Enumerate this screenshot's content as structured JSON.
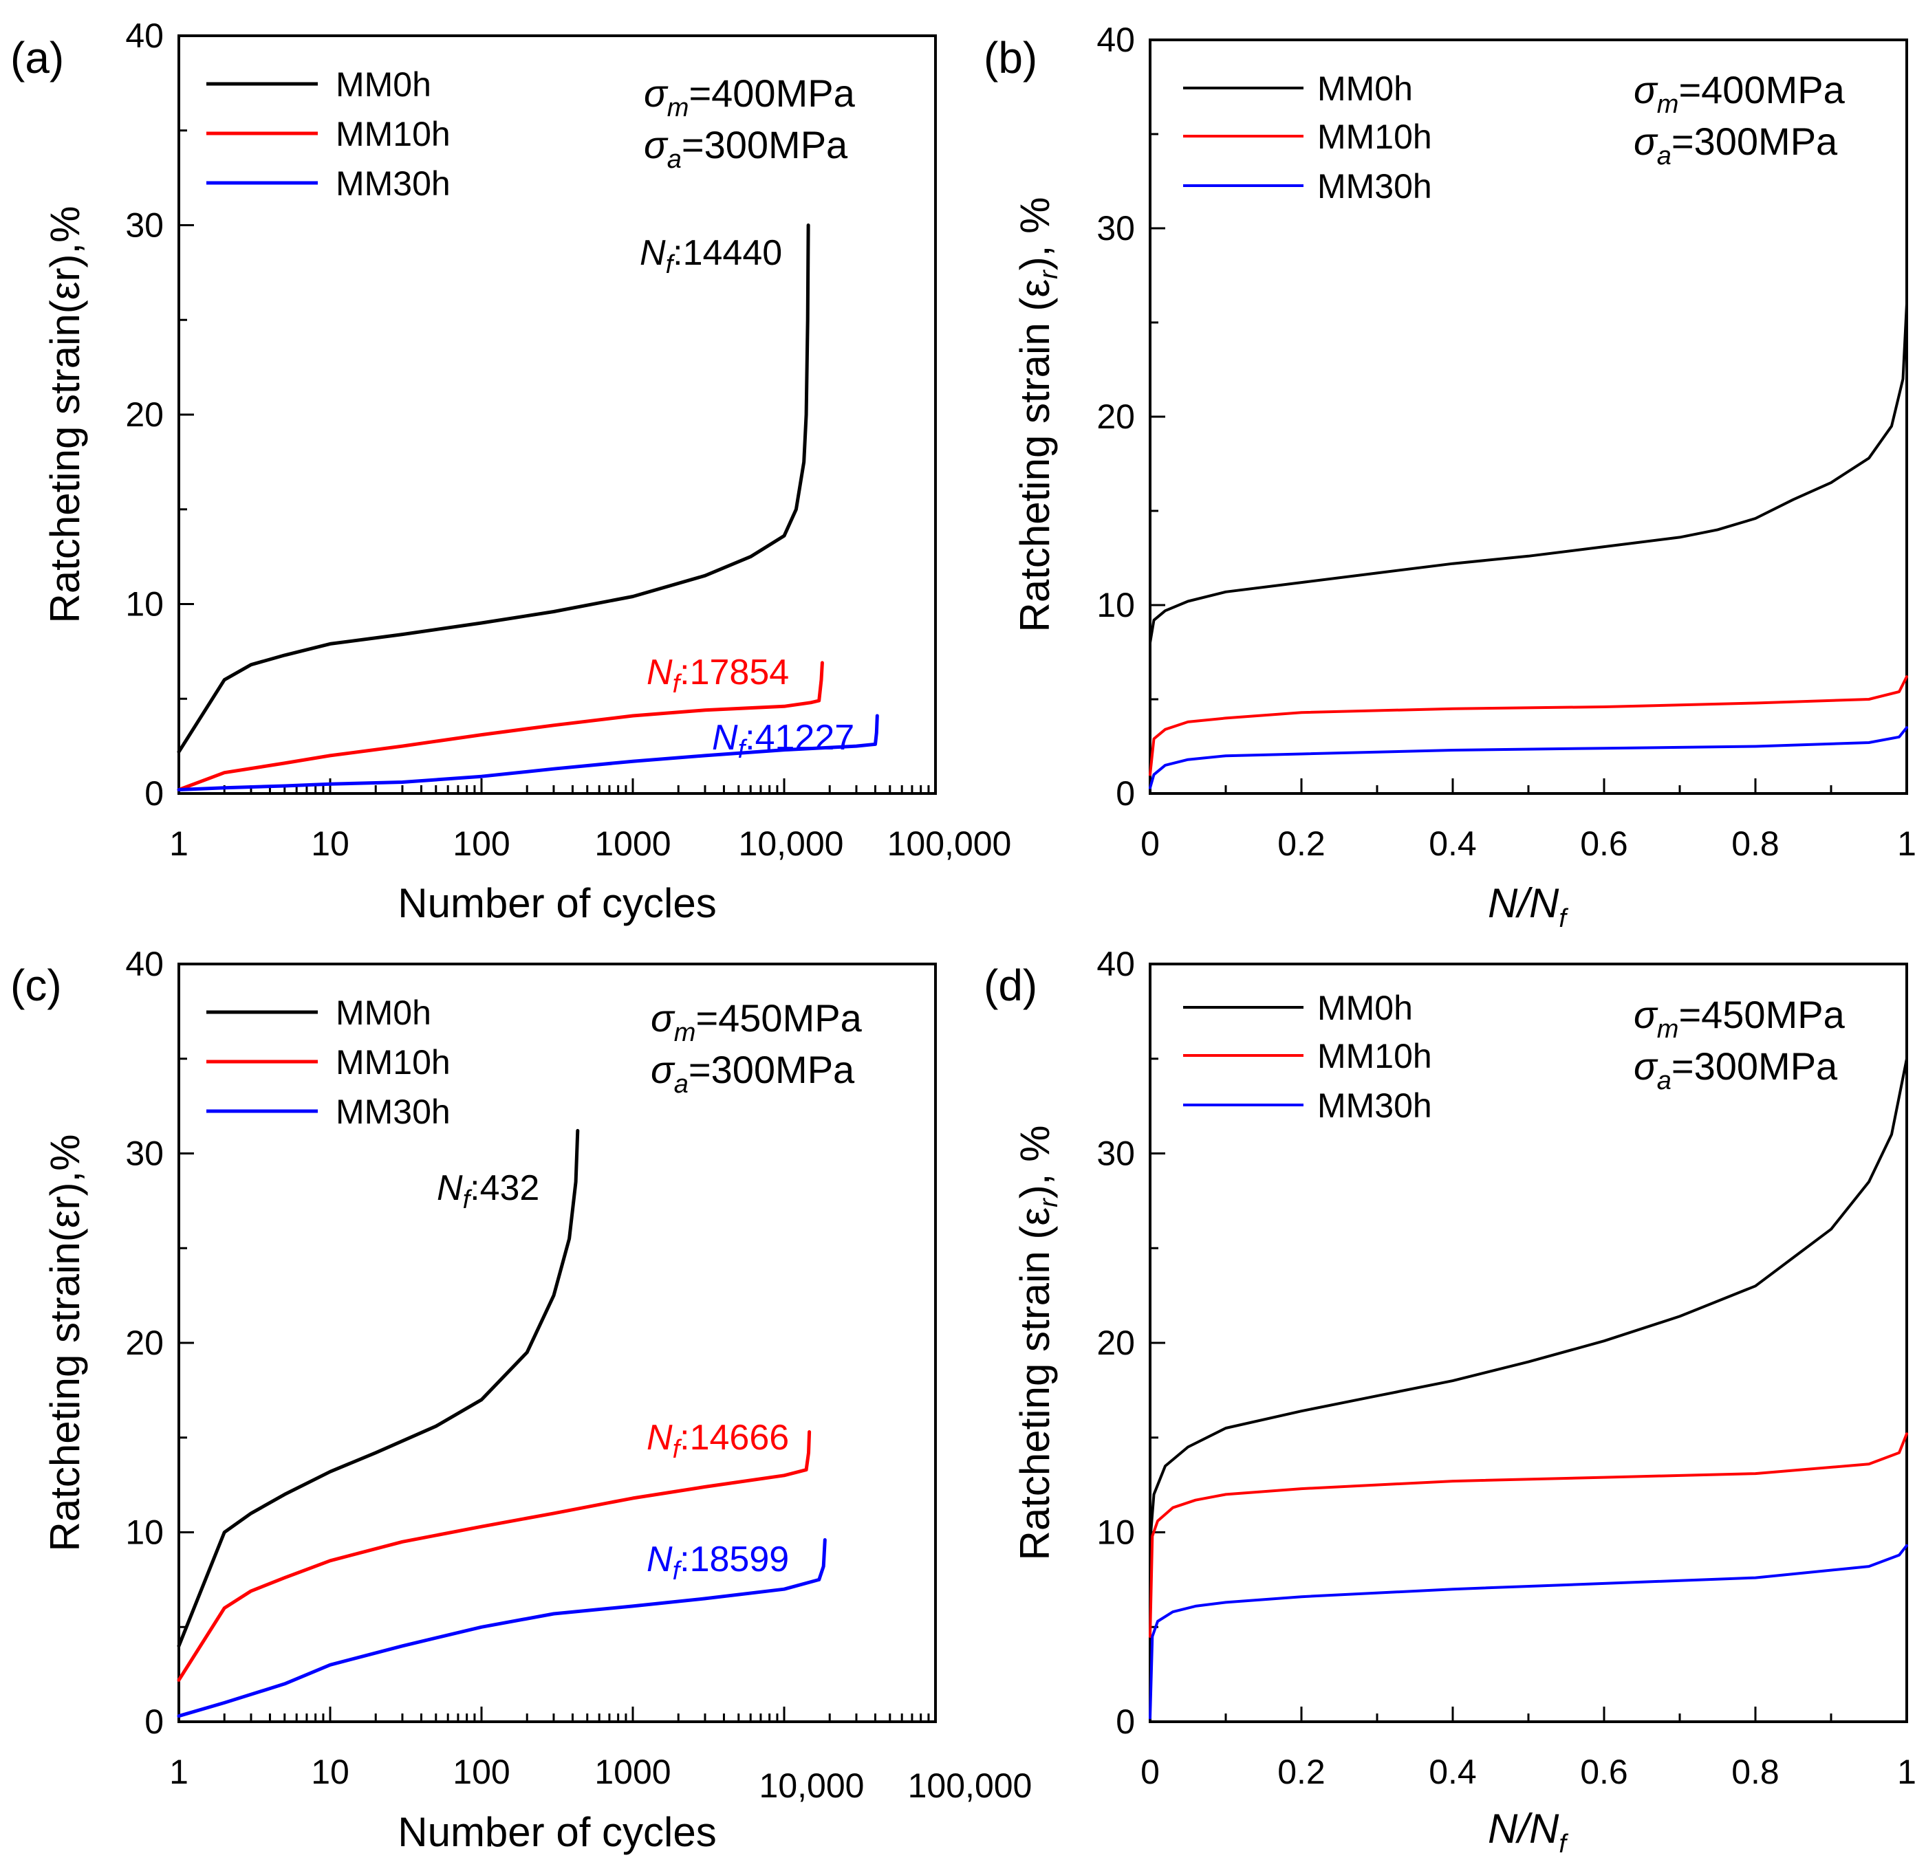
{
  "chart_data": [
    {
      "panel": "(a)",
      "type": "line",
      "xscale": "log",
      "xlabel": "Number of cycles",
      "ylabel": "Ratcheting strain(εr),%",
      "xlim": [
        1,
        100000
      ],
      "ylim": [
        0,
        40
      ],
      "xticks": [
        1,
        10,
        100,
        1000,
        10000,
        100000
      ],
      "xtick_labels": [
        "1",
        "10",
        "100",
        "1000",
        "10,000",
        "100,000"
      ],
      "yticks": [
        0,
        10,
        20,
        30,
        40
      ],
      "ytick_labels": [
        "0",
        "10",
        "20",
        "30",
        "40"
      ],
      "legend_position": "top-left",
      "conditions": [
        {
          "symbol": "σ",
          "sub": "m",
          "value": "=400MPa"
        },
        {
          "symbol": "σ",
          "sub": "a",
          "value": "=300MPa"
        }
      ],
      "series": [
        {
          "name": "MM0h",
          "color": "#000000",
          "nf_label": "14440",
          "x": [
            1,
            2,
            3,
            5,
            10,
            30,
            100,
            300,
            1000,
            3000,
            6000,
            10000,
            12000,
            13500,
            14000,
            14300,
            14440
          ],
          "y": [
            2.2,
            6.0,
            6.8,
            7.3,
            7.9,
            8.4,
            9.0,
            9.6,
            10.4,
            11.5,
            12.5,
            13.6,
            15.0,
            17.5,
            20.0,
            25.0,
            30.0
          ]
        },
        {
          "name": "MM10h",
          "color": "#ff0000",
          "nf_label": "17854",
          "x": [
            1,
            2,
            5,
            10,
            30,
            100,
            300,
            1000,
            3000,
            10000,
            15000,
            17000,
            17600,
            17854
          ],
          "y": [
            0.2,
            1.1,
            1.6,
            2.0,
            2.5,
            3.1,
            3.6,
            4.1,
            4.4,
            4.6,
            4.8,
            4.9,
            6.0,
            6.9
          ]
        },
        {
          "name": "MM30h",
          "color": "#0000ff",
          "nf_label": "41227",
          "x": [
            1,
            2,
            5,
            10,
            30,
            100,
            300,
            1000,
            3000,
            10000,
            30000,
            40000,
            40800,
            41227
          ],
          "y": [
            0.2,
            0.3,
            0.4,
            0.5,
            0.6,
            0.9,
            1.3,
            1.7,
            2.0,
            2.3,
            2.5,
            2.6,
            3.2,
            4.1
          ]
        }
      ]
    },
    {
      "panel": "(b)",
      "type": "line",
      "xscale": "linear",
      "xlabel": "N/Nf",
      "ylabel": "Ratcheting strain (εr), %",
      "xlim": [
        0,
        1
      ],
      "ylim": [
        0,
        40
      ],
      "xticks": [
        0,
        0.2,
        0.4,
        0.6,
        0.8,
        1
      ],
      "xtick_labels": [
        "0",
        "0.2",
        "0.4",
        "0.6",
        "0.8",
        "1"
      ],
      "yticks": [
        0,
        10,
        20,
        30,
        40
      ],
      "ytick_labels": [
        "0",
        "10",
        "20",
        "30",
        "40"
      ],
      "legend_position": "top-left",
      "conditions": [
        {
          "symbol": "σ",
          "sub": "m",
          "value": "=400MPa"
        },
        {
          "symbol": "σ",
          "sub": "a",
          "value": "=300MPa"
        }
      ],
      "series": [
        {
          "name": "MM0h",
          "color": "#000000",
          "x": [
            0,
            0.005,
            0.02,
            0.05,
            0.1,
            0.2,
            0.3,
            0.4,
            0.5,
            0.6,
            0.7,
            0.75,
            0.8,
            0.85,
            0.9,
            0.95,
            0.98,
            0.995,
            1.0
          ],
          "y": [
            8.0,
            9.2,
            9.7,
            10.2,
            10.7,
            11.2,
            11.7,
            12.2,
            12.6,
            13.1,
            13.6,
            14.0,
            14.6,
            15.6,
            16.5,
            17.8,
            19.5,
            22.0,
            26.0
          ]
        },
        {
          "name": "MM10h",
          "color": "#ff0000",
          "x": [
            0,
            0.005,
            0.02,
            0.05,
            0.1,
            0.2,
            0.4,
            0.6,
            0.8,
            0.95,
            0.99,
            1.0
          ],
          "y": [
            1.0,
            2.9,
            3.4,
            3.8,
            4.0,
            4.3,
            4.5,
            4.6,
            4.8,
            5.0,
            5.4,
            6.2
          ]
        },
        {
          "name": "MM30h",
          "color": "#0000ff",
          "x": [
            0,
            0.005,
            0.02,
            0.05,
            0.1,
            0.2,
            0.4,
            0.6,
            0.8,
            0.95,
            0.99,
            1.0
          ],
          "y": [
            0.3,
            1.0,
            1.5,
            1.8,
            2.0,
            2.1,
            2.3,
            2.4,
            2.5,
            2.7,
            3.0,
            3.5
          ]
        }
      ]
    },
    {
      "panel": "(c)",
      "type": "line",
      "xscale": "log",
      "xlabel": "Number of cycles",
      "ylabel": "Ratcheting strain(εr),%",
      "xlim": [
        1,
        100000
      ],
      "ylim": [
        0,
        40
      ],
      "xticks": [
        1,
        10,
        100,
        1000,
        10000,
        100000
      ],
      "xtick_labels": [
        "1",
        "10",
        "100",
        "1000",
        "10,000",
        "100,000"
      ],
      "yticks": [
        0,
        10,
        20,
        30,
        40
      ],
      "ytick_labels": [
        "0",
        "10",
        "20",
        "30",
        "40"
      ],
      "legend_position": "top-left",
      "conditions": [
        {
          "symbol": "σ",
          "sub": "m",
          "value": "=450MPa"
        },
        {
          "symbol": "σ",
          "sub": "a",
          "value": "=300MPa"
        }
      ],
      "series": [
        {
          "name": "MM0h",
          "color": "#000000",
          "nf_label": "432",
          "x": [
            1,
            2,
            3,
            5,
            10,
            20,
            50,
            100,
            200,
            300,
            380,
            420,
            432
          ],
          "y": [
            4.0,
            10.0,
            11.0,
            12.0,
            13.2,
            14.2,
            15.6,
            17.0,
            19.5,
            22.5,
            25.5,
            28.5,
            31.2
          ]
        },
        {
          "name": "MM10h",
          "color": "#ff0000",
          "nf_label": "14666",
          "x": [
            1,
            2,
            3,
            5,
            10,
            30,
            100,
            300,
            1000,
            3000,
            10000,
            14000,
            14500,
            14666
          ],
          "y": [
            2.2,
            6.0,
            6.9,
            7.6,
            8.5,
            9.5,
            10.3,
            11.0,
            11.8,
            12.4,
            13.0,
            13.3,
            14.2,
            15.3
          ]
        },
        {
          "name": "MM30h",
          "color": "#0000ff",
          "nf_label": "18599",
          "x": [
            1,
            2,
            5,
            10,
            30,
            100,
            300,
            1000,
            3000,
            10000,
            17000,
            18200,
            18599
          ],
          "y": [
            0.3,
            1.0,
            2.0,
            3.0,
            4.0,
            5.0,
            5.7,
            6.1,
            6.5,
            7.0,
            7.5,
            8.2,
            9.6
          ]
        }
      ]
    },
    {
      "panel": "(d)",
      "type": "line",
      "xscale": "linear",
      "xlabel": "N/Nf",
      "ylabel": "Ratcheting strain (εr), %",
      "xlim": [
        0,
        1
      ],
      "ylim": [
        0,
        40
      ],
      "xticks": [
        0,
        0.2,
        0.4,
        0.6,
        0.8,
        1
      ],
      "xtick_labels": [
        "0",
        "0.2",
        "0.4",
        "0.6",
        "0.8",
        "1"
      ],
      "yticks": [
        0,
        10,
        20,
        30,
        40
      ],
      "ytick_labels": [
        "0",
        "10",
        "20",
        "30",
        "40"
      ],
      "legend_position": "top-left",
      "conditions": [
        {
          "symbol": "σ",
          "sub": "m",
          "value": "=450MPa"
        },
        {
          "symbol": "σ",
          "sub": "a",
          "value": "=300MPa"
        }
      ],
      "series": [
        {
          "name": "MM0h",
          "color": "#000000",
          "x": [
            0,
            0.005,
            0.02,
            0.05,
            0.1,
            0.2,
            0.3,
            0.4,
            0.5,
            0.6,
            0.7,
            0.8,
            0.85,
            0.9,
            0.95,
            0.98,
            1.0
          ],
          "y": [
            9.5,
            12.0,
            13.5,
            14.5,
            15.5,
            16.4,
            17.2,
            18.0,
            19.0,
            20.1,
            21.4,
            23.0,
            24.5,
            26.0,
            28.5,
            31.0,
            35.0
          ]
        },
        {
          "name": "MM10h",
          "color": "#ff0000",
          "x": [
            0,
            0.003,
            0.01,
            0.03,
            0.06,
            0.1,
            0.2,
            0.4,
            0.6,
            0.8,
            0.95,
            0.99,
            1.0
          ],
          "y": [
            4.5,
            9.8,
            10.6,
            11.3,
            11.7,
            12.0,
            12.3,
            12.7,
            12.9,
            13.1,
            13.6,
            14.2,
            15.2
          ]
        },
        {
          "name": "MM30h",
          "color": "#0000ff",
          "x": [
            0,
            0.003,
            0.01,
            0.03,
            0.06,
            0.1,
            0.2,
            0.4,
            0.6,
            0.8,
            0.95,
            0.99,
            1.0
          ],
          "y": [
            0.2,
            4.5,
            5.3,
            5.8,
            6.1,
            6.3,
            6.6,
            7.0,
            7.3,
            7.6,
            8.2,
            8.8,
            9.3
          ]
        }
      ]
    }
  ]
}
